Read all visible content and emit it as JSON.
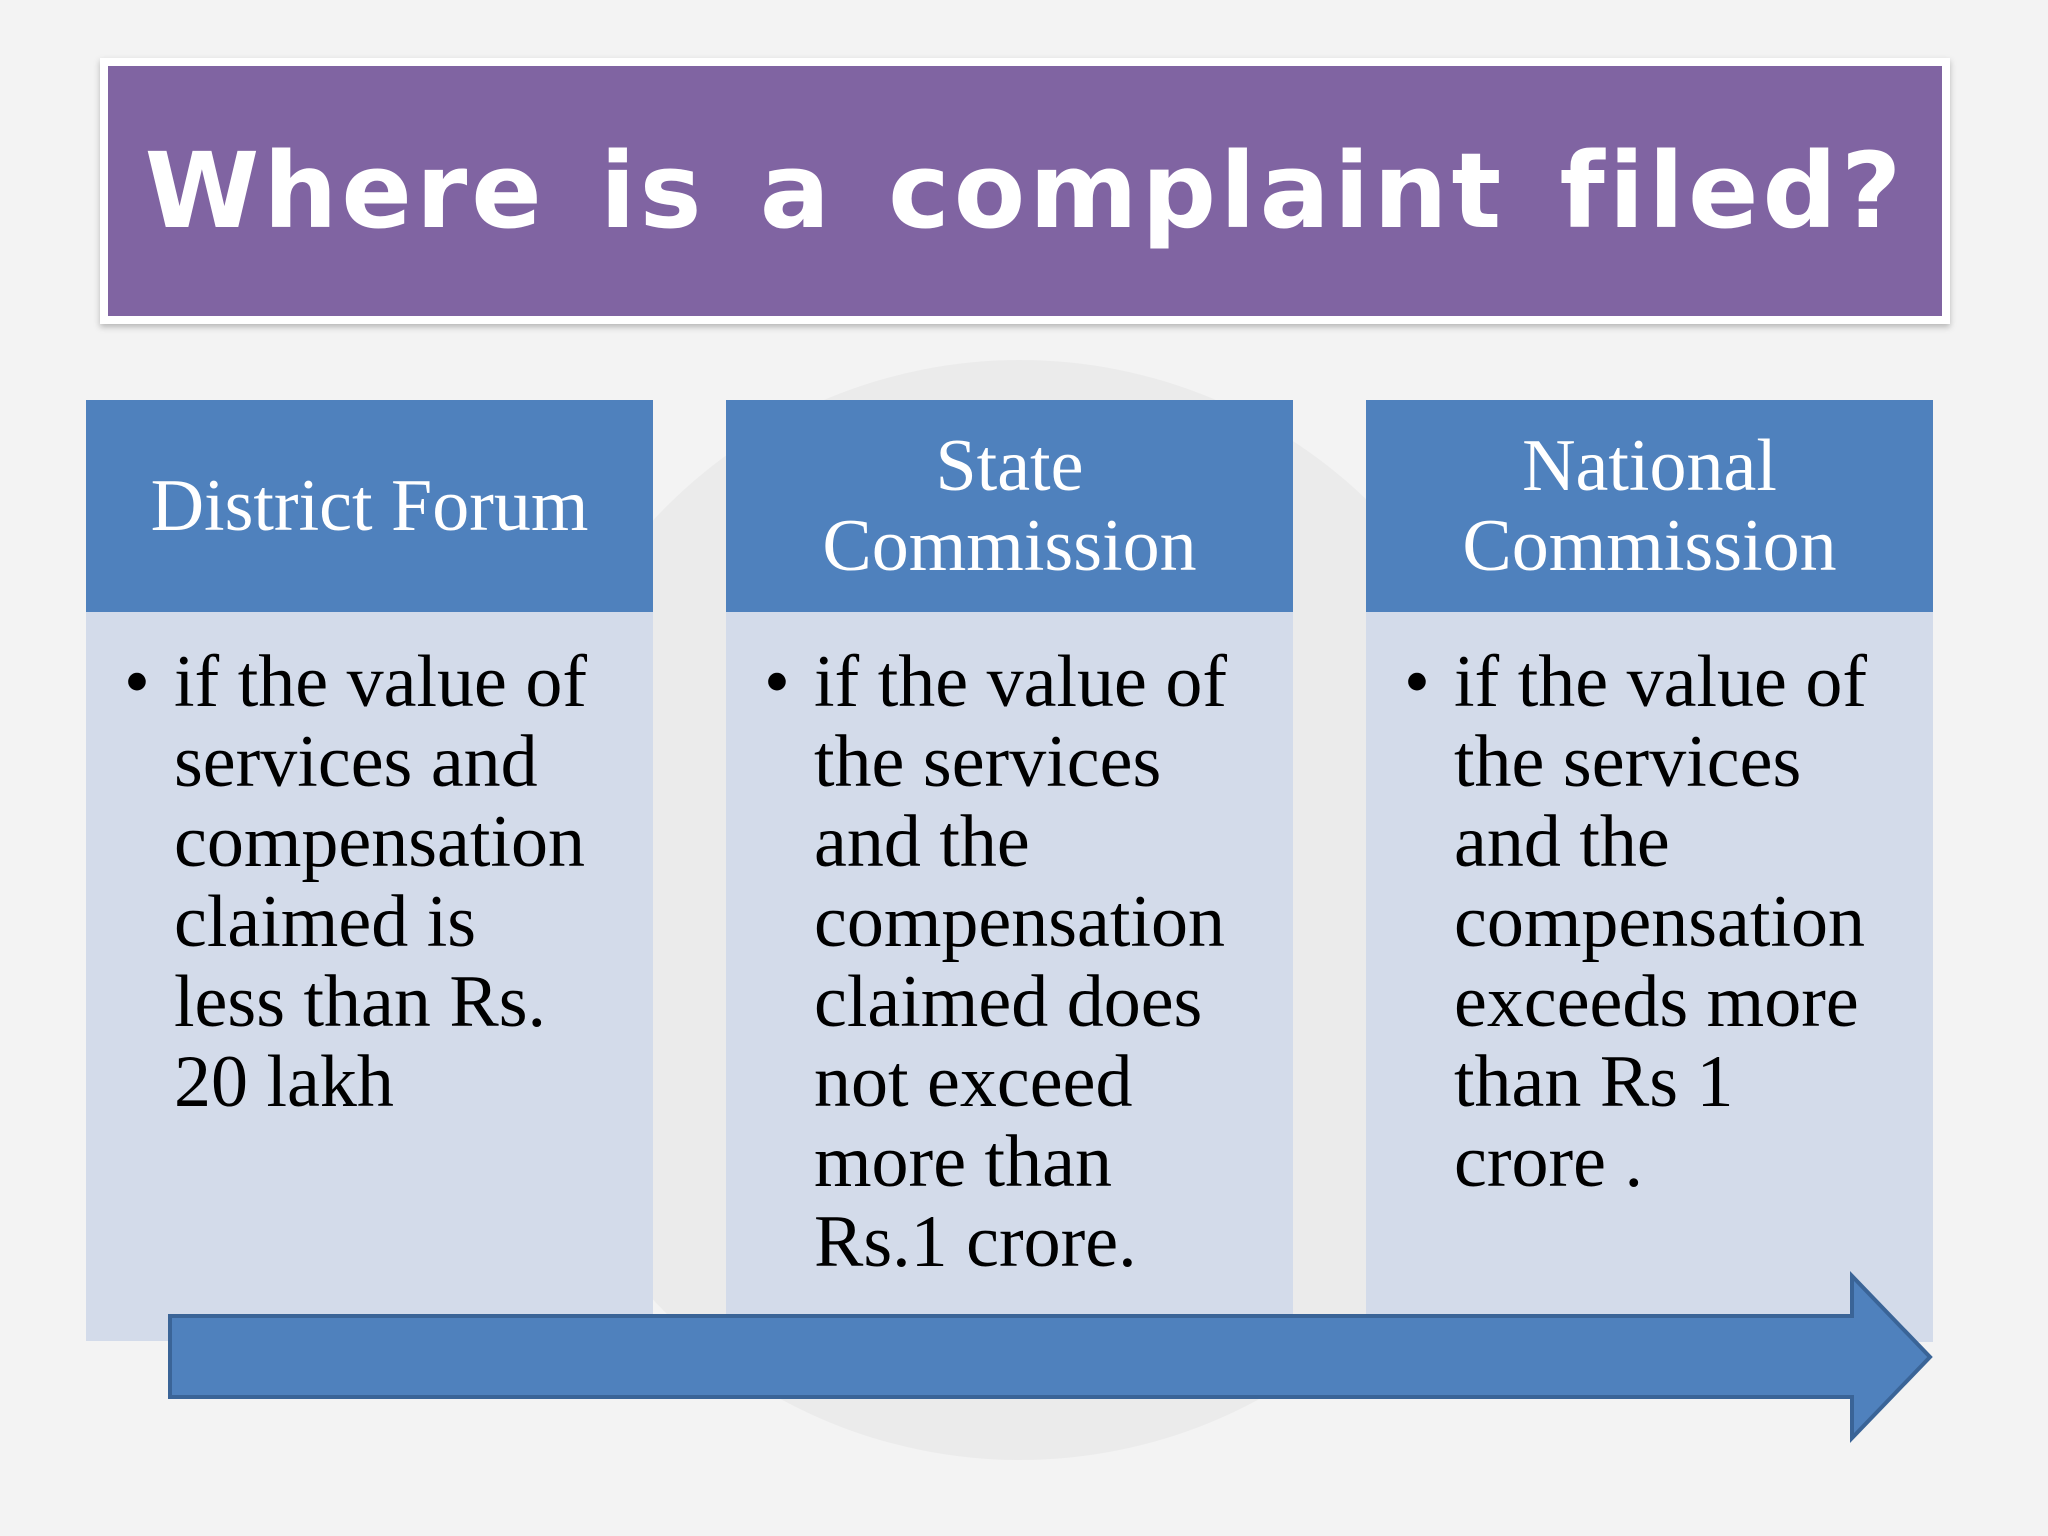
{
  "title": "Where is a complaint filed?",
  "colors": {
    "title_bg": "#8064a2",
    "header_bg": "#4f81bd",
    "body_bg": "#d3dbea",
    "arrow": "#4f81bd"
  },
  "columns": [
    {
      "heading": [
        "District Forum"
      ],
      "bullet": "•",
      "lines": [
        "if the value of",
        "services and",
        "compensation",
        "claimed is",
        "less than Rs.",
        "20 lakh"
      ]
    },
    {
      "heading": [
        "State",
        "Commission"
      ],
      "bullet": "•",
      "lines": [
        "if the value of",
        "the services",
        "and the",
        "compensation",
        "claimed does",
        "not exceed",
        "more than",
        "Rs.1 crore."
      ]
    },
    {
      "heading": [
        "National",
        "Commission"
      ],
      "bullet": "•",
      "lines": [
        "if the value of",
        "the services",
        "and the",
        "compensation",
        "exceeds more",
        "than Rs 1",
        "crore ."
      ]
    }
  ]
}
